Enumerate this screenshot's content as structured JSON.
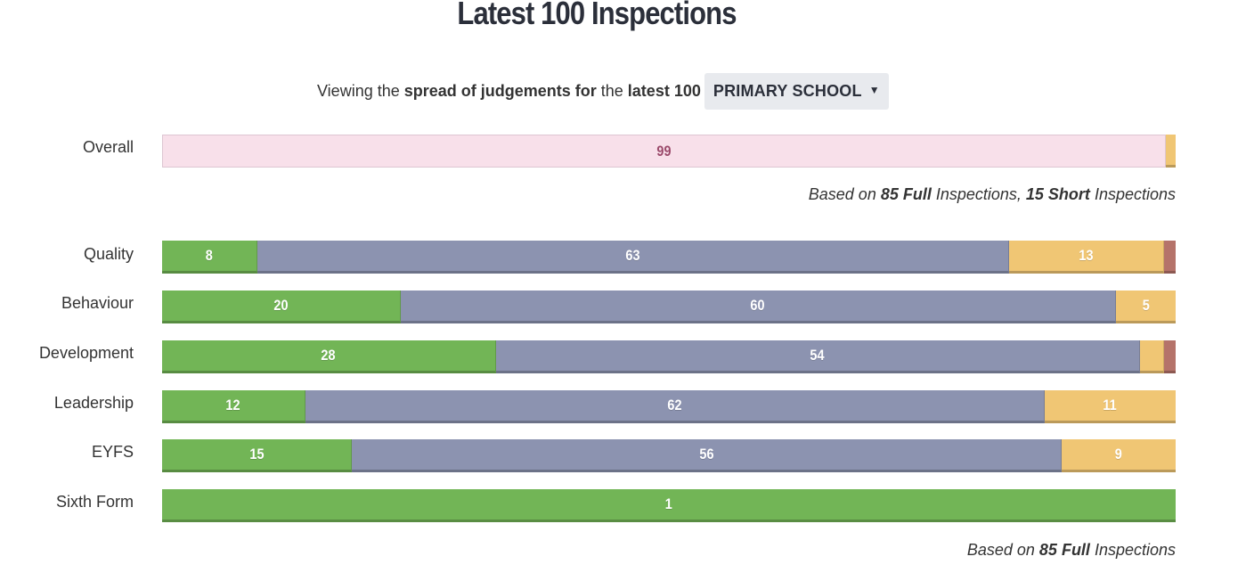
{
  "title": "Latest 100 Inspections",
  "viewing": {
    "part1": "Viewing the ",
    "bold1": "spread of judgements for",
    "part2": " the ",
    "bold2": "latest 100",
    "dropdown_value": "PRIMARY SCHOOL",
    "dropdown_icon": "caret-down-icon"
  },
  "colors": {
    "outstanding": "#72b556",
    "good": "#8c93b0",
    "requires_improvement": "#f0c674",
    "inadequate": "#b5736a",
    "overall_pink": "#f8e0ea",
    "overall_pink_text": "#9b4a6b"
  },
  "notes": {
    "overall": {
      "prefix": "Based on ",
      "n1": "85 Full",
      "mid": " Inspections, ",
      "n2": "15 Short",
      "suffix": " Inspections"
    },
    "categories": {
      "prefix": "Based on ",
      "n1": "85 Full",
      "suffix": " Inspections"
    }
  },
  "chart_data": {
    "type": "bar",
    "orientation": "horizontal-stacked",
    "title": "Latest 100 Inspections",
    "segment_order": [
      "outstanding",
      "good",
      "requires_improvement",
      "inadequate"
    ],
    "rows": [
      {
        "label": "Overall",
        "segments": [
          {
            "cat": "overall_pink",
            "value": 99,
            "label": "99"
          },
          {
            "cat": "requires_improvement",
            "value": 1,
            "label": ""
          }
        ]
      },
      {
        "label": "Quality",
        "segments": [
          {
            "cat": "outstanding",
            "value": 8,
            "label": "8"
          },
          {
            "cat": "good",
            "value": 63,
            "label": "63"
          },
          {
            "cat": "requires_improvement",
            "value": 13,
            "label": "13"
          },
          {
            "cat": "inadequate",
            "value": 1,
            "label": ""
          }
        ]
      },
      {
        "label": "Behaviour",
        "segments": [
          {
            "cat": "outstanding",
            "value": 20,
            "label": "20"
          },
          {
            "cat": "good",
            "value": 60,
            "label": "60"
          },
          {
            "cat": "requires_improvement",
            "value": 5,
            "label": "5"
          }
        ]
      },
      {
        "label": "Development",
        "segments": [
          {
            "cat": "outstanding",
            "value": 28,
            "label": "28"
          },
          {
            "cat": "good",
            "value": 54,
            "label": "54"
          },
          {
            "cat": "requires_improvement",
            "value": 2,
            "label": ""
          },
          {
            "cat": "inadequate",
            "value": 1,
            "label": ""
          }
        ]
      },
      {
        "label": "Leadership",
        "segments": [
          {
            "cat": "outstanding",
            "value": 12,
            "label": "12"
          },
          {
            "cat": "good",
            "value": 62,
            "label": "62"
          },
          {
            "cat": "requires_improvement",
            "value": 11,
            "label": "11"
          }
        ]
      },
      {
        "label": "EYFS",
        "segments": [
          {
            "cat": "outstanding",
            "value": 15,
            "label": "15"
          },
          {
            "cat": "good",
            "value": 56,
            "label": "56"
          },
          {
            "cat": "requires_improvement",
            "value": 9,
            "label": "9"
          }
        ]
      },
      {
        "label": "Sixth Form",
        "segments": [
          {
            "cat": "outstanding",
            "value": 1,
            "label": "1"
          }
        ]
      }
    ]
  }
}
